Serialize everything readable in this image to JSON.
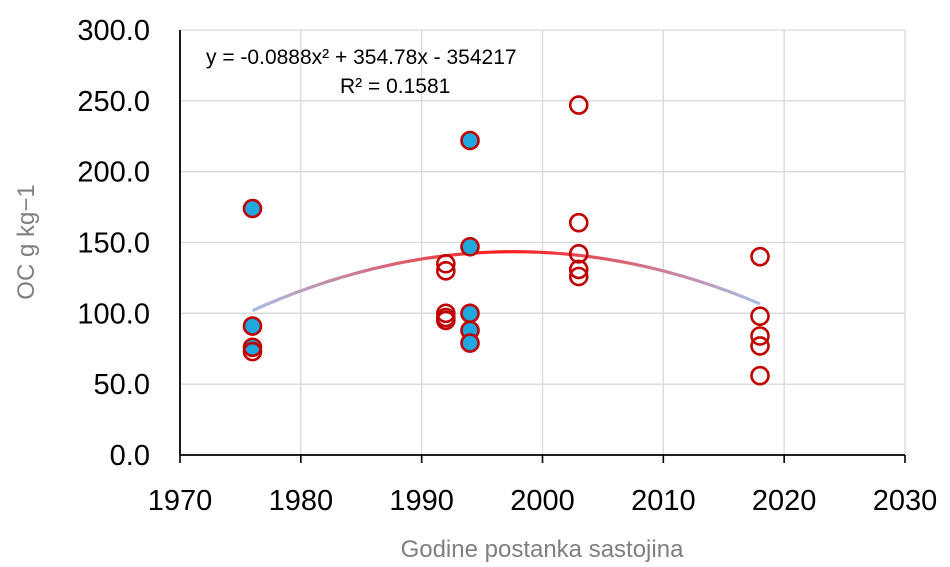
{
  "chart_data": {
    "type": "scatter",
    "xlabel": "Godine postanka sastojina",
    "ylabel": "OC g kg−1",
    "xlim": [
      1970,
      2030
    ],
    "ylim": [
      0,
      300
    ],
    "x_ticks": [
      "1970",
      "1980",
      "1990",
      "2000",
      "2010",
      "2020",
      "2030"
    ],
    "y_ticks": [
      "0.0",
      "50.0",
      "100.0",
      "150.0",
      "200.0",
      "250.0",
      "300.0"
    ],
    "grid": true,
    "legend": "none",
    "colors": {
      "filled_marker": "#1fa7e0",
      "marker_edge": "#c00000",
      "trend_center": "#ff1a1a",
      "trend_ends": "#a9bfe6",
      "gridline": "#d9d9d9"
    },
    "series": [
      {
        "marker": "filled-circle",
        "points": [
          {
            "x": 1976,
            "y": 174
          },
          {
            "x": 1976,
            "y": 91
          },
          {
            "x": 1976,
            "y": 76
          },
          {
            "x": 1994,
            "y": 222
          },
          {
            "x": 1994,
            "y": 147
          },
          {
            "x": 1994,
            "y": 100
          },
          {
            "x": 1994,
            "y": 88
          },
          {
            "x": 1994,
            "y": 79
          }
        ]
      },
      {
        "marker": "open-circle",
        "points": [
          {
            "x": 1976,
            "y": 73
          },
          {
            "x": 1992,
            "y": 135
          },
          {
            "x": 1992,
            "y": 130
          },
          {
            "x": 1992,
            "y": 100
          },
          {
            "x": 1992,
            "y": 97
          },
          {
            "x": 1992,
            "y": 95
          },
          {
            "x": 2003,
            "y": 247
          },
          {
            "x": 2003,
            "y": 164
          },
          {
            "x": 2003,
            "y": 142
          },
          {
            "x": 2003,
            "y": 131
          },
          {
            "x": 2003,
            "y": 126
          },
          {
            "x": 2018,
            "y": 140
          },
          {
            "x": 2018,
            "y": 98
          },
          {
            "x": 2018,
            "y": 84
          },
          {
            "x": 2018,
            "y": 77
          },
          {
            "x": 2018,
            "y": 56
          }
        ]
      }
    ],
    "trendline": {
      "type": "polynomial",
      "coefficients": [
        -0.0888,
        354.78,
        -354217
      ],
      "x_range": [
        1976,
        2018
      ],
      "equation_label": "y = -0.0888x² + 354.78x - 354217",
      "r2_label": "R² = 0.1581"
    }
  }
}
